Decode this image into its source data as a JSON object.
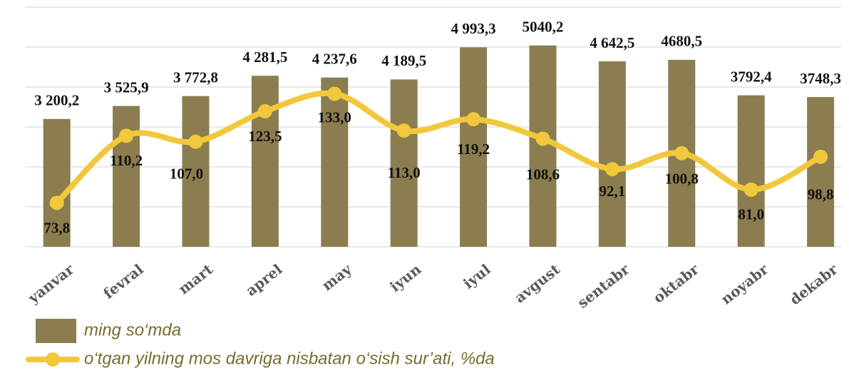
{
  "chart_data": {
    "type": "bar+line",
    "categories": [
      "yanvar",
      "fevral",
      "mart",
      "aprel",
      "may",
      "iyun",
      "iyul",
      "avgust",
      "sentabr",
      "oktabr",
      "noyabr",
      "dekabr"
    ],
    "series": [
      {
        "name": "ming so‘mda",
        "type": "bar",
        "color": "#8b7d4f",
        "values": [
          3200.2,
          3525.9,
          3772.8,
          4281.5,
          4237.6,
          4189.5,
          4993.3,
          5040.2,
          4642.5,
          4680.5,
          3792.4,
          3748.3
        ],
        "value_labels": [
          "3 200,2",
          "3 525,9",
          "3 772,8",
          "4 281,5",
          "4 237,6",
          "4 189,5",
          "4 993,3",
          "5040,2",
          "4 642,5",
          "4680,5",
          "3792,4",
          "3748,3"
        ]
      },
      {
        "name": "o‘tgan yilning mos davriga nisbatan o‘sish sur’ati, %da",
        "type": "line",
        "axis": "y2",
        "color": "#f1c83c",
        "values": [
          73.8,
          110.2,
          107.0,
          123.5,
          133.0,
          113.0,
          119.2,
          108.6,
          92.1,
          100.8,
          81.0,
          98.8
        ],
        "value_labels": [
          "73,8",
          "110,2",
          "107,0",
          "123,5",
          "133,0",
          "113,0",
          "119,2",
          "108,6",
          "92,1",
          "100,8",
          "81,0",
          "98,8"
        ]
      }
    ],
    "ylim": [
      0,
      6000
    ],
    "yticks": [
      0,
      1000,
      2000,
      3000,
      4000,
      5000,
      6000
    ],
    "y2lim": [
      50,
      180
    ],
    "grid": true,
    "legend": "bottom-left"
  }
}
